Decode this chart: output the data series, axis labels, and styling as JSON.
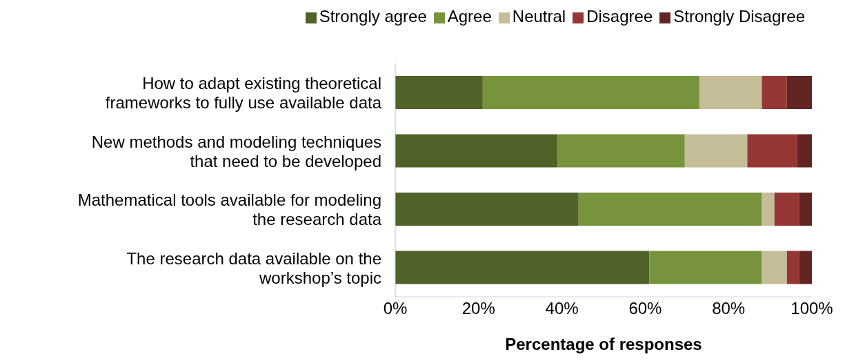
{
  "chart_data": {
    "type": "bar",
    "orientation": "horizontal",
    "stacked": true,
    "xlabel": "Percentage of responses",
    "categories": [
      "How to adapt existing theoretical\nframeworks to fully use available data",
      "New methods and modeling techniques\nthat need to be developed",
      "Mathematical tools available for modeling\nthe research data",
      "The research data available on the\nworkshop’s topic"
    ],
    "series": [
      {
        "name": "Strongly agree",
        "color": "#4f6228",
        "values": [
          21,
          39,
          44,
          61
        ]
      },
      {
        "name": "Agree",
        "color": "#77933c",
        "values": [
          52,
          30.5,
          44,
          27
        ]
      },
      {
        "name": "Neutral",
        "color": "#c4bd97",
        "values": [
          15,
          15,
          3,
          6
        ]
      },
      {
        "name": "Disagree",
        "color": "#953735",
        "values": [
          6,
          12,
          6,
          3
        ]
      },
      {
        "name": "Strongly Disagree",
        "color": "#632523",
        "values": [
          6,
          3.5,
          3,
          3
        ]
      }
    ],
    "xlim": [
      0,
      100
    ],
    "xticks": [
      {
        "value": 0,
        "label": "0%"
      },
      {
        "value": 20,
        "label": "20%"
      },
      {
        "value": 40,
        "label": "40%"
      },
      {
        "value": 60,
        "label": "60%"
      },
      {
        "value": 80,
        "label": "80%"
      },
      {
        "value": 100,
        "label": "100%"
      }
    ],
    "grid": false,
    "legend": "top"
  }
}
